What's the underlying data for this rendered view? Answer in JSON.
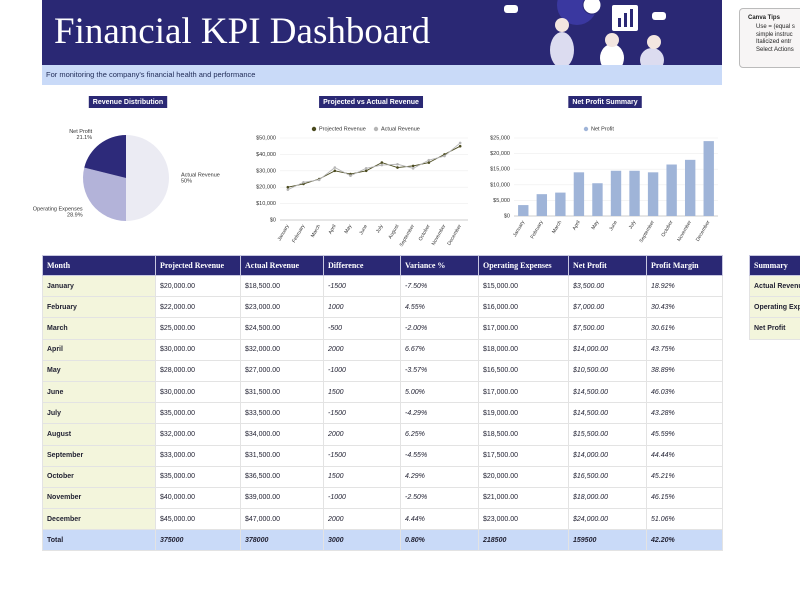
{
  "header": {
    "title": "Financial KPI Dashboard",
    "subtitle": "For monitoring the company's financial health and performance"
  },
  "tips": {
    "title": "Canva Tips",
    "lines": [
      "Use = (equal s",
      "simple instruc",
      "Italicized entr",
      "Select Actions"
    ]
  },
  "chart_data": [
    {
      "type": "pie",
      "title": "Revenue Distribution",
      "categories": [
        "Actual Revenue",
        "Operating Expenses",
        "Net Profit"
      ],
      "values": [
        50,
        28.9,
        21.1
      ],
      "value_labels": [
        "50%",
        "28.9%",
        "21.1%"
      ],
      "colors": [
        "#ebebf3",
        "#b3b3d9",
        "#2d2a7a"
      ]
    },
    {
      "type": "line",
      "title": "Projected vs Actual Revenue",
      "categories": [
        "January",
        "February",
        "March",
        "April",
        "May",
        "June",
        "July",
        "August",
        "September",
        "October",
        "November",
        "December"
      ],
      "series": [
        {
          "name": "Projected Revenue",
          "color": "#4a4a1e",
          "values": [
            20000,
            22000,
            25000,
            30000,
            28000,
            30000,
            35000,
            32000,
            33000,
            35000,
            40000,
            45000
          ]
        },
        {
          "name": "Actual Revenue",
          "color": "#b5b5b5",
          "values": [
            18500,
            23000,
            24500,
            32000,
            27000,
            31500,
            33500,
            34000,
            31500,
            36500,
            39000,
            47000
          ]
        }
      ],
      "ylim": [
        0,
        50000
      ],
      "yticks": [
        {
          "value": 0,
          "label": "$0"
        },
        {
          "value": 10000,
          "label": "$10,000"
        },
        {
          "value": 20000,
          "label": "$20,000"
        },
        {
          "value": 30000,
          "label": "$30,000"
        },
        {
          "value": 40000,
          "label": "$40,000"
        },
        {
          "value": 50000,
          "label": "$50,000"
        }
      ],
      "grid": true
    },
    {
      "type": "bar",
      "title": "Net Profit Summary",
      "categories": [
        "January",
        "February",
        "March",
        "April",
        "May",
        "June",
        "July",
        "September",
        "October",
        "November",
        "December"
      ],
      "series": [
        {
          "name": "Net Profit",
          "color": "#9fb4d8",
          "values": [
            3500,
            7000,
            7500,
            14000,
            10500,
            14500,
            14500,
            14000,
            16500,
            18000,
            24000
          ]
        }
      ],
      "ylim": [
        0,
        25000
      ],
      "yticks": [
        {
          "value": 0,
          "label": "$0"
        },
        {
          "value": 5000,
          "label": "$5,000"
        },
        {
          "value": 10000,
          "label": "$10,000"
        },
        {
          "value": 15000,
          "label": "$15,000"
        },
        {
          "value": 20000,
          "label": "$20,000"
        },
        {
          "value": 25000,
          "label": "$25,000"
        }
      ],
      "grid": true
    }
  ],
  "table": {
    "columns": [
      "Month",
      "Projected Revenue",
      "Actual Revenue",
      "Difference",
      "Variance %",
      "Operating Expenses",
      "Net Profit",
      "Profit Margin"
    ],
    "rows": [
      [
        "January",
        "$20,000.00",
        "$18,500.00",
        "-1500",
        "-7.50%",
        "$15,000.00",
        "$3,500.00",
        "18.92%"
      ],
      [
        "February",
        "$22,000.00",
        "$23,000.00",
        "1000",
        "4.55%",
        "$16,000.00",
        "$7,000.00",
        "30.43%"
      ],
      [
        "March",
        "$25,000.00",
        "$24,500.00",
        "-500",
        "-2.00%",
        "$17,000.00",
        "$7,500.00",
        "30.61%"
      ],
      [
        "April",
        "$30,000.00",
        "$32,000.00",
        "2000",
        "6.67%",
        "$18,000.00",
        "$14,000.00",
        "43.75%"
      ],
      [
        "May",
        "$28,000.00",
        "$27,000.00",
        "-1000",
        "-3.57%",
        "$16,500.00",
        "$10,500.00",
        "38.89%"
      ],
      [
        "June",
        "$30,000.00",
        "$31,500.00",
        "1500",
        "5.00%",
        "$17,000.00",
        "$14,500.00",
        "46.03%"
      ],
      [
        "July",
        "$35,000.00",
        "$33,500.00",
        "-1500",
        "-4.29%",
        "$19,000.00",
        "$14,500.00",
        "43.28%"
      ],
      [
        "August",
        "$32,000.00",
        "$34,000.00",
        "2000",
        "6.25%",
        "$18,500.00",
        "$15,500.00",
        "45.59%"
      ],
      [
        "September",
        "$33,000.00",
        "$31,500.00",
        "-1500",
        "-4.55%",
        "$17,500.00",
        "$14,000.00",
        "44.44%"
      ],
      [
        "October",
        "$35,000.00",
        "$36,500.00",
        "1500",
        "4.29%",
        "$20,000.00",
        "$16,500.00",
        "45.21%"
      ],
      [
        "November",
        "$40,000.00",
        "$39,000.00",
        "-1000",
        "-2.50%",
        "$21,000.00",
        "$18,000.00",
        "46.15%"
      ],
      [
        "December",
        "$45,000.00",
        "$47,000.00",
        "2000",
        "4.44%",
        "$23,000.00",
        "$24,000.00",
        "51.06%"
      ]
    ],
    "total": [
      "Total",
      "375000",
      "378000",
      "3000",
      "0.80%",
      "218500",
      "159500",
      "42.20%"
    ]
  },
  "summary": {
    "title": "Summary",
    "rows": [
      "Actual Revenue",
      "Operating Expenses",
      "Net Profit"
    ]
  }
}
